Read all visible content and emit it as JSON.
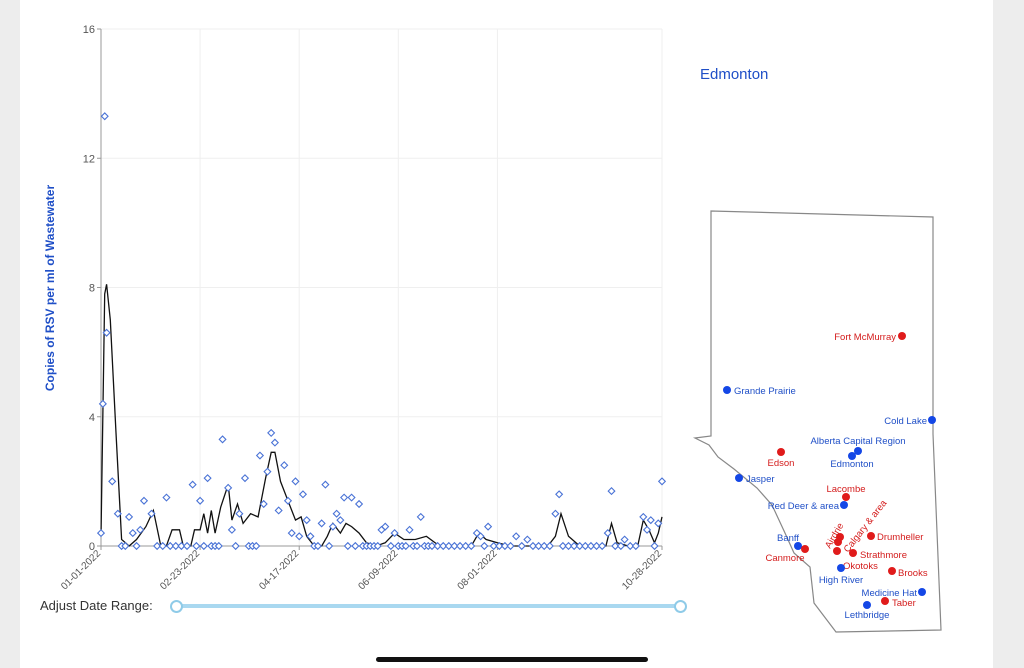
{
  "colors": {
    "marker": "#4a73d6",
    "line": "#111111",
    "blue_site": "#1447e6",
    "red_site": "#e01b1b",
    "label_blue": "#1f4fc7",
    "label_red": "#d41c1c",
    "slider": "#a9d8f0"
  },
  "controls": {
    "adjust_label": "Adjust Date Range:"
  },
  "selected_location": "Edmonton",
  "map": {
    "sites": [
      {
        "name": "Fort McMurray",
        "status": "red"
      },
      {
        "name": "Grande Prairie",
        "status": "blue"
      },
      {
        "name": "Cold Lake",
        "status": "blue"
      },
      {
        "name": "Alberta Capital Region",
        "status": "blue"
      },
      {
        "name": "Edson",
        "status": "red"
      },
      {
        "name": "Edmonton",
        "status": "blue"
      },
      {
        "name": "Jasper",
        "status": "blue"
      },
      {
        "name": "Lacombe",
        "status": "red"
      },
      {
        "name": "Red Deer & area",
        "status": "blue"
      },
      {
        "name": "Calgary & area",
        "status": "red"
      },
      {
        "name": "Drumheller",
        "status": "red"
      },
      {
        "name": "Banff",
        "status": "blue"
      },
      {
        "name": "Airdrie",
        "status": "red"
      },
      {
        "name": "Canmore",
        "status": "red"
      },
      {
        "name": "Strathmore",
        "status": "red"
      },
      {
        "name": "Okotoks",
        "status": "red"
      },
      {
        "name": "High River",
        "status": "blue"
      },
      {
        "name": "Brooks",
        "status": "red"
      },
      {
        "name": "Medicine Hat",
        "status": "blue"
      },
      {
        "name": "Taber",
        "status": "red"
      },
      {
        "name": "Lethbridge",
        "status": "blue"
      }
    ]
  },
  "chart_data": {
    "type": "scatter",
    "ylabel": "Copies of RSV per ml of Wastewater",
    "xlabel": "",
    "x_ticks": [
      "01-01-2022",
      "02-23-2022",
      "04-17-2022",
      "06-09-2022",
      "08-01-2022",
      "10-28-2022"
    ],
    "y_ticks": [
      0,
      4,
      8,
      12,
      16
    ],
    "ylim": [
      0,
      16
    ],
    "xlim": [
      "2022-01-01",
      "2022-10-28"
    ],
    "grid": true,
    "series": [
      {
        "style": "markers",
        "points": [
          [
            "2022-01-01",
            0.4
          ],
          [
            "2022-01-02",
            4.4
          ],
          [
            "2022-01-03",
            13.3
          ],
          [
            "2022-01-04",
            6.6
          ],
          [
            "2022-01-07",
            2.0
          ],
          [
            "2022-01-10",
            1.0
          ],
          [
            "2022-01-12",
            0
          ],
          [
            "2022-01-14",
            0
          ],
          [
            "2022-01-16",
            0.9
          ],
          [
            "2022-01-18",
            0.4
          ],
          [
            "2022-01-20",
            0
          ],
          [
            "2022-01-22",
            0.5
          ],
          [
            "2022-01-24",
            1.4
          ],
          [
            "2022-01-28",
            1.0
          ],
          [
            "2022-01-31",
            0
          ],
          [
            "2022-02-03",
            0
          ],
          [
            "2022-02-05",
            1.5
          ],
          [
            "2022-02-07",
            0
          ],
          [
            "2022-02-10",
            0
          ],
          [
            "2022-02-13",
            0
          ],
          [
            "2022-02-16",
            0
          ],
          [
            "2022-02-19",
            1.9
          ],
          [
            "2022-02-21",
            0
          ],
          [
            "2022-02-23",
            1.4
          ],
          [
            "2022-02-25",
            0
          ],
          [
            "2022-02-27",
            2.1
          ],
          [
            "2022-03-01",
            0
          ],
          [
            "2022-03-03",
            0
          ],
          [
            "2022-03-05",
            0
          ],
          [
            "2022-03-07",
            3.3
          ],
          [
            "2022-03-10",
            1.8
          ],
          [
            "2022-03-12",
            0.5
          ],
          [
            "2022-03-14",
            0
          ],
          [
            "2022-03-16",
            1.0
          ],
          [
            "2022-03-19",
            2.1
          ],
          [
            "2022-03-21",
            0
          ],
          [
            "2022-03-23",
            0
          ],
          [
            "2022-03-25",
            0
          ],
          [
            "2022-03-27",
            2.8
          ],
          [
            "2022-03-29",
            1.3
          ],
          [
            "2022-03-31",
            2.3
          ],
          [
            "2022-04-02",
            3.5
          ],
          [
            "2022-04-04",
            3.2
          ],
          [
            "2022-04-06",
            1.1
          ],
          [
            "2022-04-09",
            2.5
          ],
          [
            "2022-04-11",
            1.4
          ],
          [
            "2022-04-13",
            0.4
          ],
          [
            "2022-04-15",
            2.0
          ],
          [
            "2022-04-17",
            0.3
          ],
          [
            "2022-04-19",
            1.6
          ],
          [
            "2022-04-21",
            0.8
          ],
          [
            "2022-04-23",
            0.3
          ],
          [
            "2022-04-25",
            0
          ],
          [
            "2022-04-27",
            0
          ],
          [
            "2022-04-29",
            0.7
          ],
          [
            "2022-05-01",
            1.9
          ],
          [
            "2022-05-03",
            0
          ],
          [
            "2022-05-05",
            0.6
          ],
          [
            "2022-05-07",
            1.0
          ],
          [
            "2022-05-09",
            0.8
          ],
          [
            "2022-05-11",
            1.5
          ],
          [
            "2022-05-13",
            0
          ],
          [
            "2022-05-15",
            1.5
          ],
          [
            "2022-05-17",
            0
          ],
          [
            "2022-05-19",
            1.3
          ],
          [
            "2022-05-21",
            0
          ],
          [
            "2022-05-23",
            0
          ],
          [
            "2022-05-25",
            0
          ],
          [
            "2022-05-27",
            0
          ],
          [
            "2022-05-29",
            0
          ],
          [
            "2022-05-31",
            0.5
          ],
          [
            "2022-06-02",
            0.6
          ],
          [
            "2022-06-05",
            0
          ],
          [
            "2022-06-07",
            0.4
          ],
          [
            "2022-06-09",
            0
          ],
          [
            "2022-06-11",
            0
          ],
          [
            "2022-06-13",
            0
          ],
          [
            "2022-06-15",
            0.5
          ],
          [
            "2022-06-17",
            0
          ],
          [
            "2022-06-19",
            0
          ],
          [
            "2022-06-21",
            0.9
          ],
          [
            "2022-06-23",
            0
          ],
          [
            "2022-06-25",
            0
          ],
          [
            "2022-06-27",
            0
          ],
          [
            "2022-06-30",
            0
          ],
          [
            "2022-07-03",
            0
          ],
          [
            "2022-07-06",
            0
          ],
          [
            "2022-07-09",
            0
          ],
          [
            "2022-07-12",
            0
          ],
          [
            "2022-07-15",
            0
          ],
          [
            "2022-07-18",
            0
          ],
          [
            "2022-07-21",
            0.4
          ],
          [
            "2022-07-23",
            0.3
          ],
          [
            "2022-07-25",
            0
          ],
          [
            "2022-07-27",
            0.6
          ],
          [
            "2022-07-30",
            0
          ],
          [
            "2022-08-02",
            0
          ],
          [
            "2022-08-05",
            0
          ],
          [
            "2022-08-08",
            0
          ],
          [
            "2022-08-11",
            0.3
          ],
          [
            "2022-08-14",
            0
          ],
          [
            "2022-08-17",
            0.2
          ],
          [
            "2022-08-20",
            0
          ],
          [
            "2022-08-23",
            0
          ],
          [
            "2022-08-26",
            0
          ],
          [
            "2022-08-29",
            0
          ],
          [
            "2022-09-01",
            1.0
          ],
          [
            "2022-09-03",
            1.6
          ],
          [
            "2022-09-05",
            0
          ],
          [
            "2022-09-08",
            0
          ],
          [
            "2022-09-11",
            0
          ],
          [
            "2022-09-14",
            0
          ],
          [
            "2022-09-17",
            0
          ],
          [
            "2022-09-20",
            0
          ],
          [
            "2022-09-23",
            0
          ],
          [
            "2022-09-26",
            0
          ],
          [
            "2022-09-29",
            0.4
          ],
          [
            "2022-10-01",
            1.7
          ],
          [
            "2022-10-03",
            0
          ],
          [
            "2022-10-06",
            0
          ],
          [
            "2022-10-08",
            0.2
          ],
          [
            "2022-10-11",
            0
          ],
          [
            "2022-10-14",
            0
          ],
          [
            "2022-10-18",
            0.9
          ],
          [
            "2022-10-20",
            0.5
          ],
          [
            "2022-10-22",
            0.8
          ],
          [
            "2022-10-24",
            0
          ],
          [
            "2022-10-26",
            0.7
          ],
          [
            "2022-10-28",
            2.0
          ]
        ]
      },
      {
        "style": "line",
        "points": [
          [
            "2022-01-01",
            0.3
          ],
          [
            "2022-01-03",
            7.8
          ],
          [
            "2022-01-04",
            8.1
          ],
          [
            "2022-01-06",
            7.0
          ],
          [
            "2022-01-09",
            3.5
          ],
          [
            "2022-01-12",
            0.2
          ],
          [
            "2022-01-16",
            0
          ],
          [
            "2022-01-20",
            0.2
          ],
          [
            "2022-01-25",
            0.6
          ],
          [
            "2022-01-29",
            1.1
          ],
          [
            "2022-02-02",
            0
          ],
          [
            "2022-02-05",
            0
          ],
          [
            "2022-02-08",
            0.5
          ],
          [
            "2022-02-12",
            0.5
          ],
          [
            "2022-02-14",
            0
          ],
          [
            "2022-02-18",
            0
          ],
          [
            "2022-02-20",
            0.5
          ],
          [
            "2022-02-23",
            0.5
          ],
          [
            "2022-02-25",
            1.0
          ],
          [
            "2022-02-27",
            0.4
          ],
          [
            "2022-03-01",
            1.1
          ],
          [
            "2022-03-03",
            0.4
          ],
          [
            "2022-03-06",
            1.2
          ],
          [
            "2022-03-10",
            1.9
          ],
          [
            "2022-03-12",
            0.8
          ],
          [
            "2022-03-15",
            1.3
          ],
          [
            "2022-03-18",
            0.7
          ],
          [
            "2022-03-22",
            1.0
          ],
          [
            "2022-03-26",
            0.9
          ],
          [
            "2022-03-30",
            2.1
          ],
          [
            "2022-04-02",
            2.9
          ],
          [
            "2022-04-04",
            2.9
          ],
          [
            "2022-04-07",
            2.0
          ],
          [
            "2022-04-11",
            1.4
          ],
          [
            "2022-04-15",
            0.8
          ],
          [
            "2022-04-18",
            0.9
          ],
          [
            "2022-04-21",
            0.3
          ],
          [
            "2022-04-25",
            0
          ],
          [
            "2022-04-29",
            0
          ],
          [
            "2022-05-02",
            0.3
          ],
          [
            "2022-05-05",
            0.7
          ],
          [
            "2022-05-09",
            0.4
          ],
          [
            "2022-05-12",
            0.7
          ],
          [
            "2022-05-15",
            0.6
          ],
          [
            "2022-05-19",
            0.4
          ],
          [
            "2022-05-23",
            0.1
          ],
          [
            "2022-05-28",
            0
          ],
          [
            "2022-06-02",
            0.1
          ],
          [
            "2022-06-07",
            0.4
          ],
          [
            "2022-06-12",
            0.2
          ],
          [
            "2022-06-18",
            0.2
          ],
          [
            "2022-06-24",
            0.3
          ],
          [
            "2022-07-01",
            0
          ],
          [
            "2022-07-10",
            0
          ],
          [
            "2022-07-18",
            0
          ],
          [
            "2022-07-22",
            0.4
          ],
          [
            "2022-07-26",
            0.2
          ],
          [
            "2022-08-01",
            0.1
          ],
          [
            "2022-08-08",
            0
          ],
          [
            "2022-08-16",
            0
          ],
          [
            "2022-08-22",
            0
          ],
          [
            "2022-08-28",
            0
          ],
          [
            "2022-09-01",
            0.3
          ],
          [
            "2022-09-04",
            1.0
          ],
          [
            "2022-09-08",
            0.3
          ],
          [
            "2022-09-14",
            0
          ],
          [
            "2022-09-22",
            0
          ],
          [
            "2022-09-28",
            0
          ],
          [
            "2022-10-01",
            0.7
          ],
          [
            "2022-10-04",
            0.1
          ],
          [
            "2022-10-10",
            0
          ],
          [
            "2022-10-15",
            0
          ],
          [
            "2022-10-18",
            0.8
          ],
          [
            "2022-10-21",
            0.5
          ],
          [
            "2022-10-24",
            0.1
          ],
          [
            "2022-10-26",
            0.4
          ],
          [
            "2022-10-28",
            0.9
          ]
        ]
      }
    ]
  }
}
